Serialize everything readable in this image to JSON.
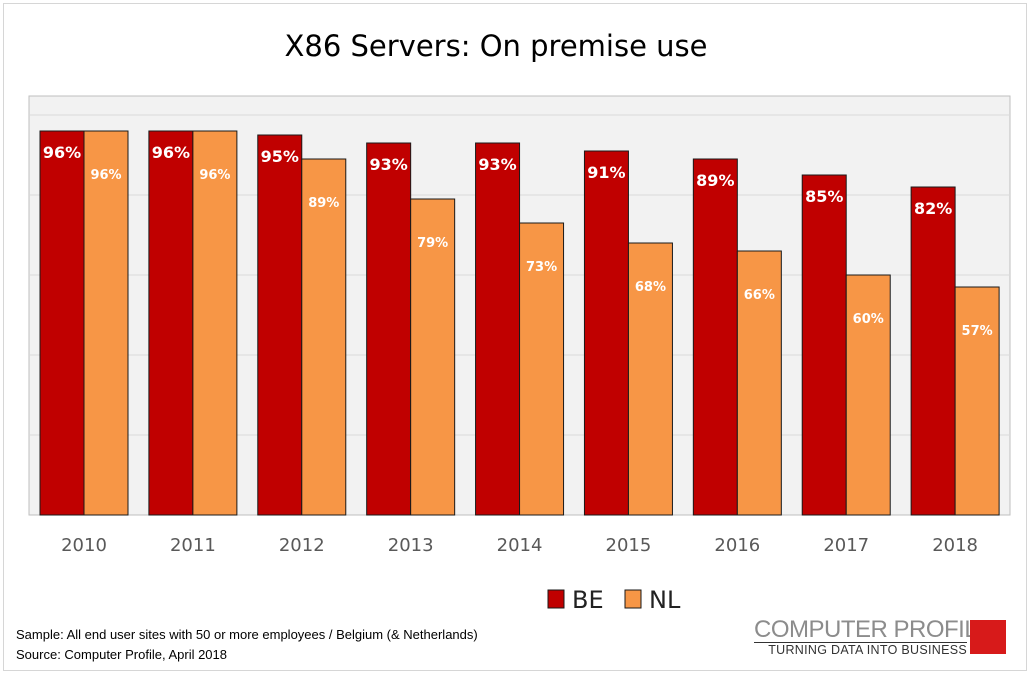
{
  "chart_data": {
    "type": "bar",
    "title": "X86 Servers: On premise use",
    "categories": [
      "2010",
      "2011",
      "2012",
      "2013",
      "2014",
      "2015",
      "2016",
      "2017",
      "2018"
    ],
    "series": [
      {
        "name": "BE",
        "color": "#c00000",
        "values": [
          96,
          96,
          95,
          93,
          93,
          91,
          89,
          85,
          82
        ],
        "labels": [
          "96%",
          "96%",
          "95%",
          "93%",
          "93%",
          "91%",
          "89%",
          "85%",
          "82%"
        ]
      },
      {
        "name": "NL",
        "color": "#f79646",
        "values": [
          96,
          96,
          89,
          79,
          73,
          68,
          66,
          60,
          57
        ],
        "labels": [
          "96%",
          "96%",
          "89%",
          "79%",
          "73%",
          "68%",
          "66%",
          "60%",
          "57%"
        ]
      }
    ],
    "xlabel": "",
    "ylabel": "",
    "ylim": [
      0,
      105
    ],
    "grid": true,
    "legend": "bottom-center"
  },
  "footer": {
    "sample": "Sample: All end user sites with 50 or more employees / Belgium (& Netherlands)",
    "source": "Source: Computer Profile, April 2018"
  },
  "logo": {
    "name": "COMPUTER PROFILE",
    "tagline": "TURNING DATA INTO BUSINESS"
  }
}
